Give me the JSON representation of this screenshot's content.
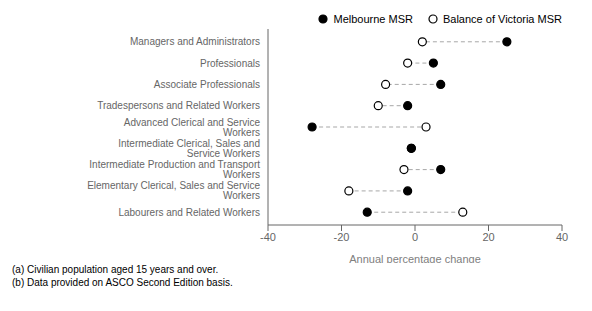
{
  "chart_data": {
    "type": "dot",
    "categories": [
      "Managers and Administrators",
      "Professionals",
      "Associate Professionals",
      "Tradespersons and Related Workers",
      "Advanced Clerical and Service Workers",
      "Intermediate Clerical, Sales and Service Workers",
      "Intermediate Production and Transport Workers",
      "Elementary Clerical, Sales and Service Workers",
      "Labourers and Related Workers"
    ],
    "series": [
      {
        "name": "Melbourne MSR",
        "color": "#000000",
        "marker": "filled_circle",
        "values": [
          25,
          5,
          7,
          -2,
          -28,
          -1,
          7,
          -2,
          -13
        ]
      },
      {
        "name": "Balance of Victoria MSR",
        "color": "#000000",
        "marker": "open_circle",
        "values": [
          2,
          -2,
          -8,
          -10,
          3,
          -1,
          -3,
          -18,
          13
        ]
      }
    ],
    "xlabel": "Annual percentage change",
    "xlim": [
      -40,
      40
    ],
    "xticks": [
      -40,
      -20,
      0,
      20,
      40
    ],
    "legend": "top",
    "annotations": [
      "(a) Civilian population aged 15 years and over.",
      "(b) Data provided on ASCO Second Edition basis."
    ]
  }
}
